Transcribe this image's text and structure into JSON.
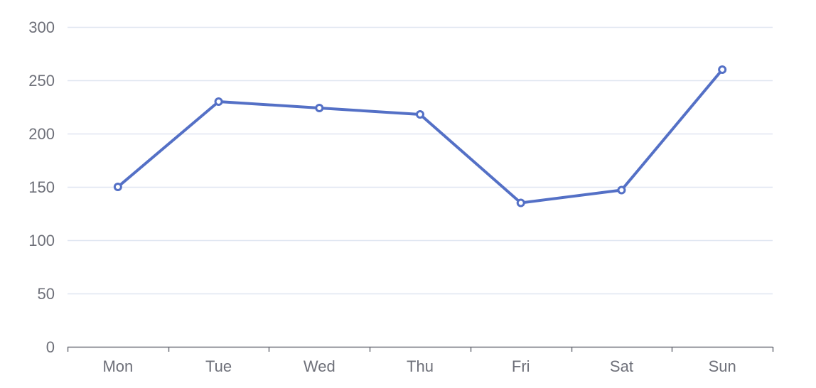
{
  "chart_data": {
    "type": "line",
    "title": "",
    "xlabel": "",
    "ylabel": "",
    "categories": [
      "Mon",
      "Tue",
      "Wed",
      "Thu",
      "Fri",
      "Sat",
      "Sun"
    ],
    "series": [
      {
        "values": [
          150,
          230,
          224,
          218,
          135,
          147,
          260
        ],
        "color": "#5470c6"
      }
    ],
    "ylim": [
      0,
      300
    ],
    "yticks": [
      0,
      50,
      100,
      150,
      200,
      250,
      300
    ],
    "grid": true,
    "legend": "none",
    "colors": {
      "line": "#5470c6",
      "grid": "#e0e6f1",
      "axis": "#6e7079",
      "label": "#6e7079"
    }
  }
}
